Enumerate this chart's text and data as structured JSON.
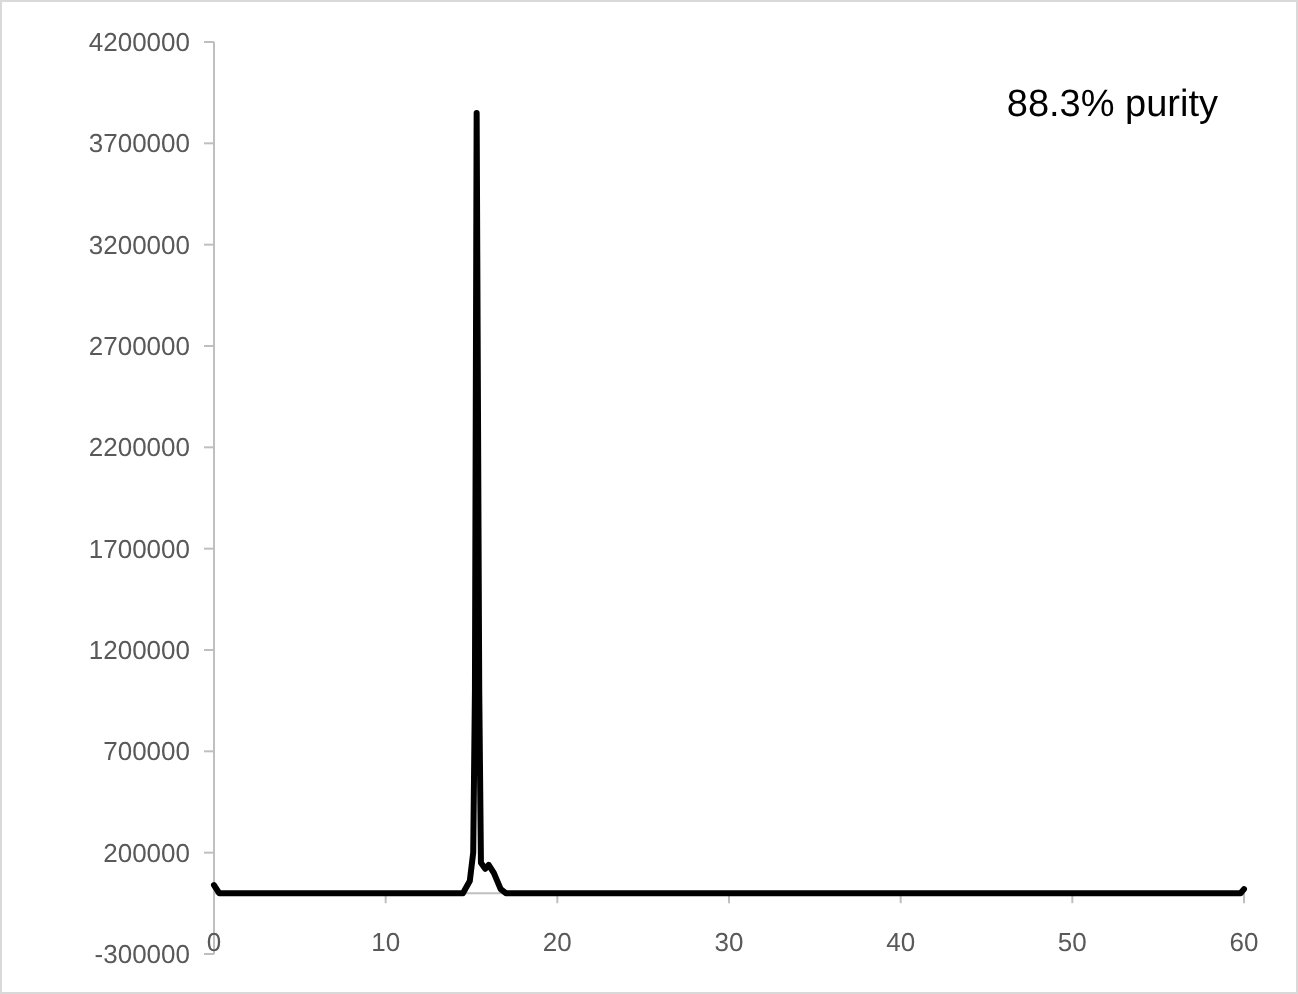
{
  "chart_data": {
    "type": "line",
    "annotations": [
      "88.3% purity"
    ],
    "series": [
      {
        "color": "#000000",
        "x": [
          0,
          0.3,
          5,
          10,
          14.5,
          14.9,
          15.1,
          15.2,
          15.3,
          15.45,
          15.55,
          15.8,
          16.0,
          16.3,
          16.7,
          17,
          20,
          30,
          40,
          50,
          59.8,
          60
        ],
        "values": [
          40000,
          0,
          0,
          0,
          0,
          60000,
          200000,
          1000000,
          3850000,
          1000000,
          150000,
          120000,
          140000,
          100000,
          20000,
          0,
          0,
          0,
          0,
          0,
          0,
          20000
        ]
      }
    ],
    "xlim": [
      0,
      60
    ],
    "xticks": [
      0,
      10,
      20,
      30,
      40,
      50,
      60
    ],
    "ylim": [
      -300000,
      4200000
    ],
    "yticks": [
      -300000,
      200000,
      700000,
      1200000,
      1700000,
      2200000,
      2700000,
      3200000,
      3700000,
      4200000
    ],
    "grid": false,
    "marker": "none",
    "line_style": "solid"
  }
}
